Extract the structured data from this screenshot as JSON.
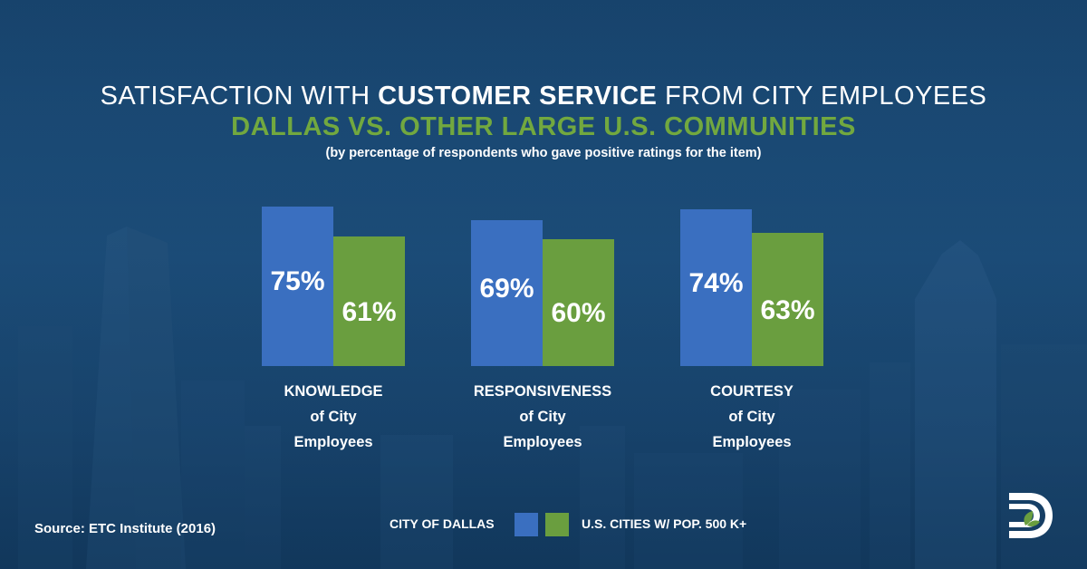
{
  "header": {
    "title_pre": "SATISFACTION WITH ",
    "title_bold": "CUSTOMER SERVICE",
    "title_post": " FROM CITY EMPLOYEES",
    "title_line2": "DALLAS VS. OTHER LARGE U.S. COMMUNITIES",
    "subtitle": "(by percentage of respondents who gave positive ratings for the item)"
  },
  "colors": {
    "dallas": "#3a6fc0",
    "us_cities": "#6a9e3f",
    "title_accent": "#72a83f"
  },
  "chart_data": {
    "type": "bar",
    "categories": [
      "KNOWLEDGE of City Employees",
      "RESPONSIVENESS of City Employees",
      "COURTESY of City Employees"
    ],
    "category_lines": [
      [
        "KNOWLEDGE",
        "of City",
        "Employees"
      ],
      [
        "RESPONSIVENESS",
        "of City",
        "Employees"
      ],
      [
        "COURTESY",
        "of City",
        "Employees"
      ]
    ],
    "series": [
      {
        "name": "CITY OF DALLAS",
        "values": [
          75,
          69,
          74
        ],
        "labels": [
          "75%",
          "69%",
          "74%"
        ]
      },
      {
        "name": "U.S. CITIES W/ POP. 500 K+",
        "values": [
          61,
          60,
          63
        ],
        "labels": [
          "61%",
          "60%",
          "63%"
        ]
      }
    ],
    "unit": "%"
  },
  "legend": {
    "dallas_label": "CITY OF DALLAS",
    "us_label": "U.S. CITIES W/ POP. 500 K+"
  },
  "footer": {
    "source": "Source: ETC Institute (2016)"
  },
  "logo": {
    "icon": "dallas-d-logo-icon"
  }
}
